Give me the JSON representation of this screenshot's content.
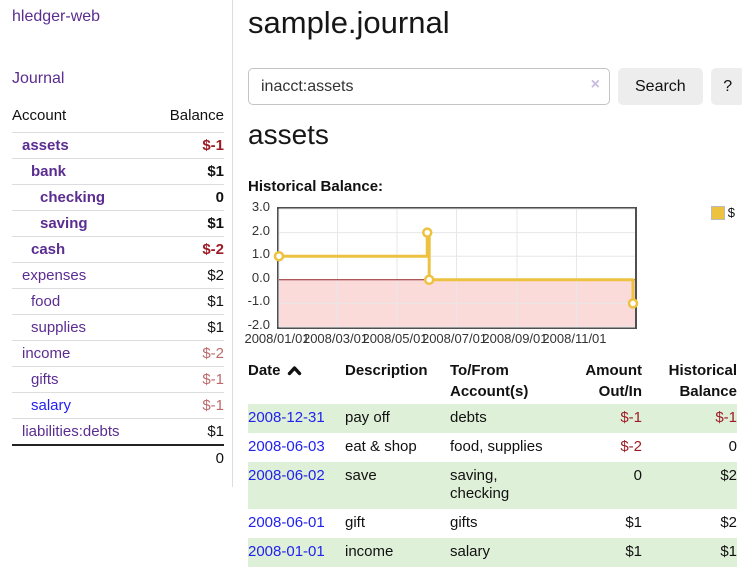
{
  "colors": {
    "link_purple": "#5b2d90",
    "link_blue": "#2222ee",
    "negative_strong": "#9e1b25",
    "negative_soft": "#bc6a6a",
    "row_stripe_green": "#dff0d8",
    "series_yellow": "#edc240",
    "negative_region_pink": "#fbdada",
    "zero_line_red": "#992222"
  },
  "sidebar": {
    "brand": "hledger-web",
    "journal_label": "Journal",
    "accounts": {
      "col_account": "Account",
      "col_balance": "Balance",
      "rows": [
        {
          "name": "assets",
          "depth": 1,
          "bold": true,
          "blue": false,
          "balance": "$-1",
          "balance_class": "amt-strong-neg"
        },
        {
          "name": "bank",
          "depth": 2,
          "bold": true,
          "blue": false,
          "balance": "$1",
          "balance_class": ""
        },
        {
          "name": "checking",
          "depth": 3,
          "bold": true,
          "blue": false,
          "balance": "0",
          "balance_class": ""
        },
        {
          "name": "saving",
          "depth": 3,
          "bold": true,
          "blue": false,
          "balance": "$1",
          "balance_class": ""
        },
        {
          "name": "cash",
          "depth": 2,
          "bold": true,
          "blue": false,
          "balance": "$-2",
          "balance_class": "amt-strong-neg"
        },
        {
          "name": "expenses",
          "depth": 1,
          "bold": false,
          "blue": false,
          "balance": "$2",
          "balance_class": ""
        },
        {
          "name": "food",
          "depth": 2,
          "bold": false,
          "blue": false,
          "balance": "$1",
          "balance_class": ""
        },
        {
          "name": "supplies",
          "depth": 2,
          "bold": false,
          "blue": false,
          "balance": "$1",
          "balance_class": ""
        },
        {
          "name": "income",
          "depth": 1,
          "bold": false,
          "blue": false,
          "balance": "$-2",
          "balance_class": "amt-soft-neg"
        },
        {
          "name": "gifts",
          "depth": 2,
          "bold": false,
          "blue": false,
          "balance": "$-1",
          "balance_class": "amt-soft-neg"
        },
        {
          "name": "salary",
          "depth": 2,
          "bold": false,
          "blue": true,
          "balance": "$-1",
          "balance_class": "amt-soft-neg"
        },
        {
          "name": "liabilities:debts",
          "depth": 1,
          "bold": false,
          "blue": false,
          "balance": "$1",
          "balance_class": ""
        }
      ],
      "total": "0"
    }
  },
  "main": {
    "title": "sample.journal",
    "search": {
      "query": "inacct:assets",
      "clear_icon": "×",
      "search_label": "Search",
      "help_label": "?"
    },
    "account_heading": "assets",
    "chart_label": "Historical Balance:",
    "register": {
      "columns": [
        {
          "label": "Date",
          "sortable": true,
          "align": "left"
        },
        {
          "label": "Description",
          "align": "left"
        },
        {
          "label": "To/From Account(s)",
          "align": "left"
        },
        {
          "label": "Amount Out/In",
          "align": "right"
        },
        {
          "label": "Historical Balance",
          "align": "right"
        }
      ],
      "rows": [
        {
          "date": "2008-12-31",
          "description": "pay off",
          "accounts": "debts",
          "amount": "$-1",
          "amount_class": "neg",
          "balance": "$-1",
          "balance_class": "neg"
        },
        {
          "date": "2008-06-03",
          "description": "eat & shop",
          "accounts": "food, supplies",
          "amount": "$-2",
          "amount_class": "neg",
          "balance": "0",
          "balance_class": ""
        },
        {
          "date": "2008-06-02",
          "description": "save",
          "accounts": "saving, checking",
          "amount": "0",
          "amount_class": "",
          "balance": "$2",
          "balance_class": ""
        },
        {
          "date": "2008-06-01",
          "description": "gift",
          "accounts": "gifts",
          "amount": "$1",
          "amount_class": "",
          "balance": "$2",
          "balance_class": ""
        },
        {
          "date": "2008-01-01",
          "description": "income",
          "accounts": "salary",
          "amount": "$1",
          "amount_class": "",
          "balance": "$1",
          "balance_class": ""
        }
      ]
    }
  },
  "chart_data": {
    "type": "line",
    "title": "Historical Balance",
    "step": true,
    "x_range": [
      "2008-01-01",
      "2008-12-31"
    ],
    "ylim": [
      -2,
      3
    ],
    "y_ticks": [
      3.0,
      2.0,
      1.0,
      0.0,
      -1.0,
      -2.0
    ],
    "x_ticks": [
      {
        "label": "2008/01/01",
        "date": "2008-01-01"
      },
      {
        "label": "2008/03/01",
        "date": "2008-03-01"
      },
      {
        "label": "2008/05/01",
        "date": "2008-05-01"
      },
      {
        "label": "2008/07/01",
        "date": "2008-07-01"
      },
      {
        "label": "2008/09/01",
        "date": "2008-09-01"
      },
      {
        "label": "2008/11/01",
        "date": "2008-11-01"
      }
    ],
    "grid": true,
    "legend_position": "top-right",
    "legend": [
      {
        "label": "$",
        "color": "#edc240"
      }
    ],
    "series": [
      {
        "name": "$",
        "color": "#edc240",
        "points": [
          {
            "x": "2008-01-01",
            "y": 1
          },
          {
            "x": "2008-06-01",
            "y": 2
          },
          {
            "x": "2008-06-03",
            "y": 0
          },
          {
            "x": "2008-12-31",
            "y": -1
          }
        ]
      }
    ],
    "negative_region": {
      "from": -2,
      "to": 0,
      "color": "#fbdada"
    },
    "zero_line_color": "#992222"
  }
}
